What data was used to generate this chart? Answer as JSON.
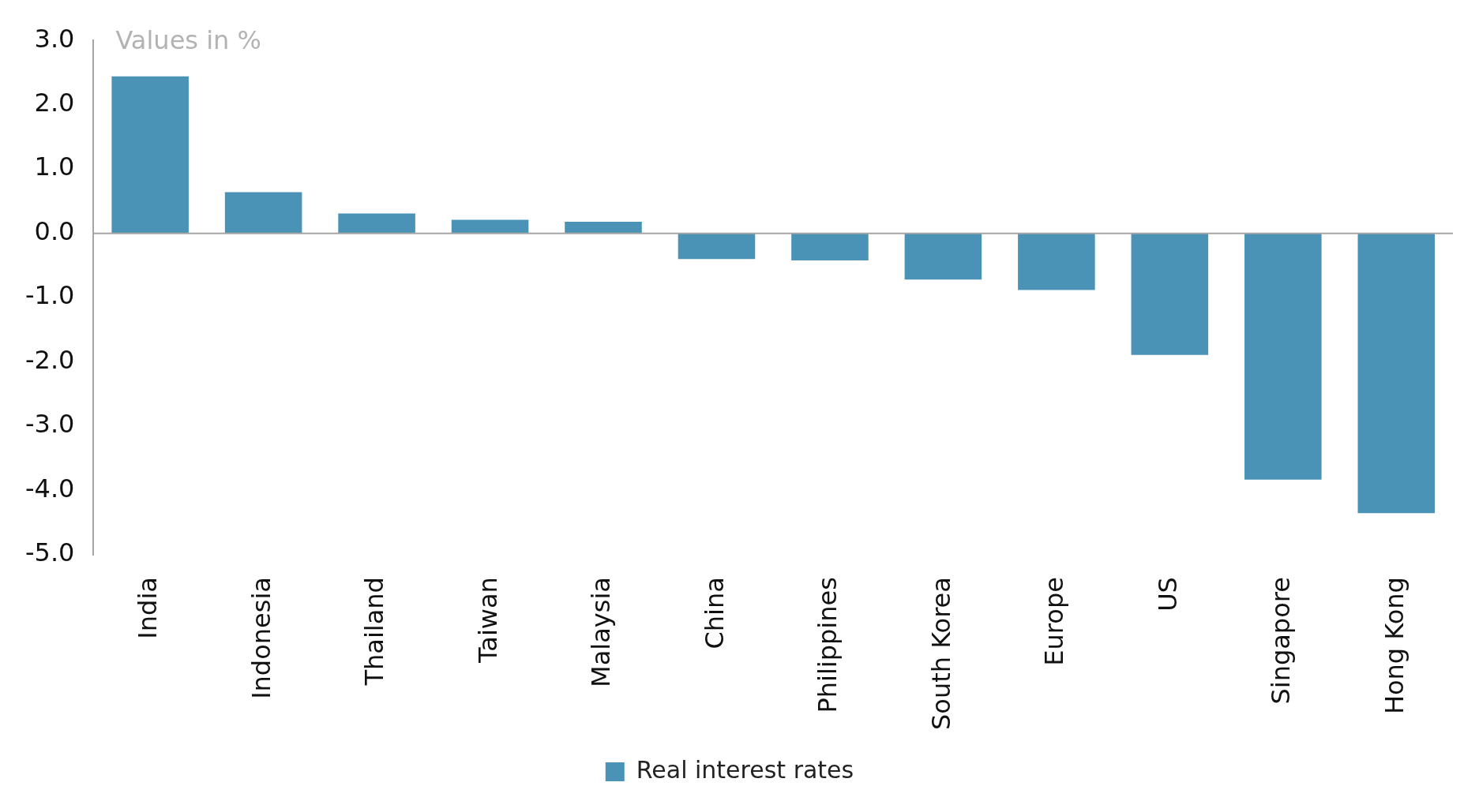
{
  "chart_data": {
    "type": "bar",
    "ylabel": "Values in %",
    "categories": [
      "India",
      "Indonesia",
      "Thailand",
      "Taiwan",
      "Malaysia",
      "China",
      "Philippines",
      "South Korea",
      "Europe",
      "US",
      "Singapore",
      "Hong Kong"
    ],
    "series": [
      {
        "name": "Real interest rates",
        "color": "#4a93b6",
        "values": [
          2.44,
          0.64,
          0.31,
          0.21,
          0.18,
          -0.4,
          -0.42,
          -0.72,
          -0.88,
          -1.89,
          -3.83,
          -4.35
        ]
      }
    ],
    "ylim": [
      -5,
      3
    ],
    "yticks": [
      {
        "value": -5,
        "label": "-5.0"
      },
      {
        "value": -4,
        "label": "-4.0"
      },
      {
        "value": -3,
        "label": "-3.0"
      },
      {
        "value": -2,
        "label": "-2.0"
      },
      {
        "value": -1,
        "label": "-1.0"
      },
      {
        "value": 0,
        "label": "0.0"
      },
      {
        "value": 1,
        "label": "1.0"
      },
      {
        "value": 2,
        "label": "2.0"
      },
      {
        "value": 3,
        "label": "3.0"
      }
    ],
    "ref_lines": [
      {
        "axis": "y",
        "value": 0,
        "color": "#a6a6a6"
      }
    ],
    "grid": false,
    "legend": "bottom"
  }
}
